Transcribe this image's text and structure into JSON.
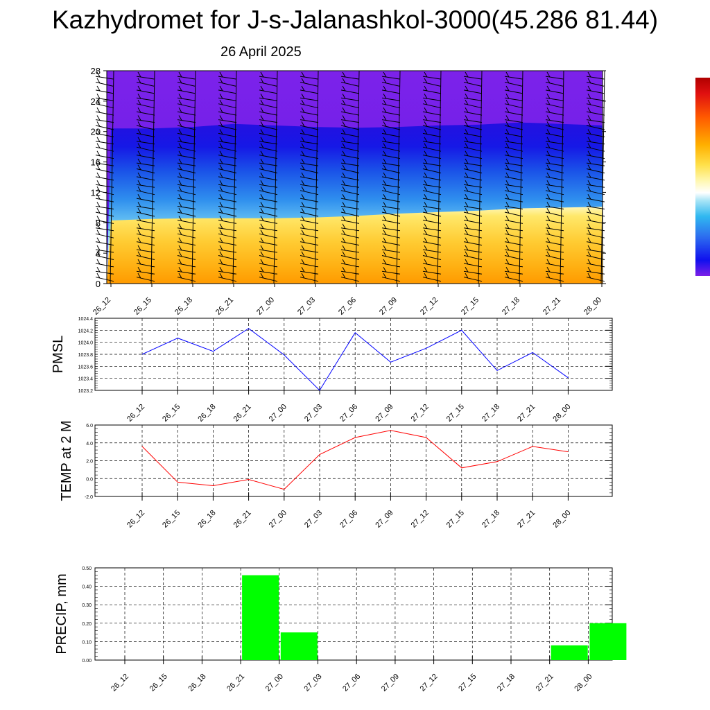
{
  "title": "Kazhydromet for J-s-Jalanashkol-3000(45.286 81.44)",
  "subtitle": "26 April 2025",
  "colors": {
    "pmsl_line": "#0000ff",
    "temp_line": "#ff0000",
    "precip_bar": "#00ff00",
    "grid": "#000000"
  },
  "chart_data": [
    {
      "type": "heatmap",
      "title": "",
      "ylim": [
        0,
        28
      ],
      "yticks": [
        "0",
        "4",
        "8",
        "12",
        "16",
        "20",
        "24",
        "28"
      ],
      "xticks": [
        "26_12",
        "26_15",
        "26_18",
        "26_21",
        "27_00",
        "27_03",
        "27_06",
        "27_09",
        "27_12",
        "27_15",
        "27_18",
        "27_21",
        "28_00"
      ],
      "colorbar": "violet-blue-cyan-white-yellow-orange-red",
      "layers": [
        {
          "name": "warm",
          "top_level": [
            8.3,
            8.5,
            8.6,
            8.6,
            8.6,
            8.7,
            8.9,
            9.2,
            9.4,
            9.6,
            9.9,
            10.0,
            10.1
          ]
        },
        {
          "name": "cold",
          "top_level": [
            20.4,
            20.4,
            20.6,
            21.0,
            20.8,
            20.6,
            20.5,
            20.6,
            20.8,
            20.9,
            21.2,
            21.0,
            20.8
          ]
        }
      ],
      "wind_barbs": true
    },
    {
      "type": "line",
      "ylabel": "PMSL",
      "x": [
        "26_12",
        "26_15",
        "26_18",
        "26_21",
        "27_00",
        "27_03",
        "27_06",
        "27_09",
        "27_12",
        "27_15",
        "27_18",
        "27_21",
        "28_00"
      ],
      "series": [
        {
          "values": [
            1023.8,
            1024.07,
            1023.85,
            1024.23,
            1023.79,
            1023.2,
            1024.16,
            1023.67,
            1023.9,
            1024.2,
            1023.53,
            1023.83,
            1023.41
          ]
        }
      ],
      "ylim": [
        1023.2,
        1024.4
      ],
      "yticks": [
        "1023.2",
        "1023.4",
        "1023.6",
        "1023.8",
        "1024.0",
        "1024.2",
        "1024.4"
      ],
      "grid": true
    },
    {
      "type": "line",
      "ylabel": "TEMP at 2 M",
      "x": [
        "26_12",
        "26_15",
        "26_18",
        "26_21",
        "27_00",
        "27_03",
        "27_06",
        "27_09",
        "27_12",
        "27_15",
        "27_18",
        "27_21",
        "28_00"
      ],
      "series": [
        {
          "values": [
            3.6,
            -0.4,
            -0.8,
            -0.1,
            -1.2,
            2.7,
            4.6,
            5.4,
            4.6,
            1.2,
            1.9,
            3.6,
            3.0
          ]
        }
      ],
      "ylim": [
        -2.0,
        6.0
      ],
      "yticks": [
        "-2.0",
        "0.0",
        "2.0",
        "4.0",
        "6.0"
      ],
      "grid": true
    },
    {
      "type": "bar",
      "ylabel": "PRECIP, mm",
      "categories": [
        "26_12",
        "26_15",
        "26_18",
        "26_21",
        "27_00",
        "27_03",
        "27_06",
        "27_09",
        "27_12",
        "27_15",
        "27_18",
        "27_21",
        "28_00"
      ],
      "values": [
        0,
        0,
        0,
        0.46,
        0.15,
        0,
        0,
        0,
        0,
        0,
        0,
        0.08,
        0.2
      ],
      "ylim": [
        0,
        0.5
      ],
      "yticks": [
        "0.00",
        "0.10",
        "0.20",
        "0.30",
        "0.40",
        "0.50"
      ],
      "grid": true
    }
  ]
}
